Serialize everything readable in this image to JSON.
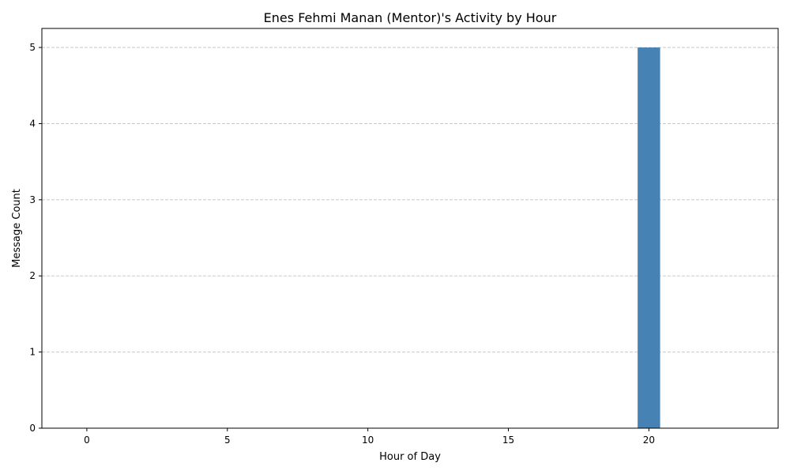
{
  "chart_data": {
    "type": "bar",
    "title": "Enes Fehmi Manan (Mentor)'s Activity by Hour",
    "xlabel": "Hour of Day",
    "ylabel": "Message Count",
    "x": [
      20
    ],
    "values": [
      5
    ],
    "xlim": [
      -1.6,
      24.6
    ],
    "ylim": [
      0,
      5.25
    ],
    "xticks": [
      0,
      5,
      10,
      15,
      20
    ],
    "yticks": [
      0,
      1,
      2,
      3,
      4,
      5
    ],
    "bar_width": 0.8,
    "bar_color": "#4682b4",
    "grid": "y-dashed"
  }
}
